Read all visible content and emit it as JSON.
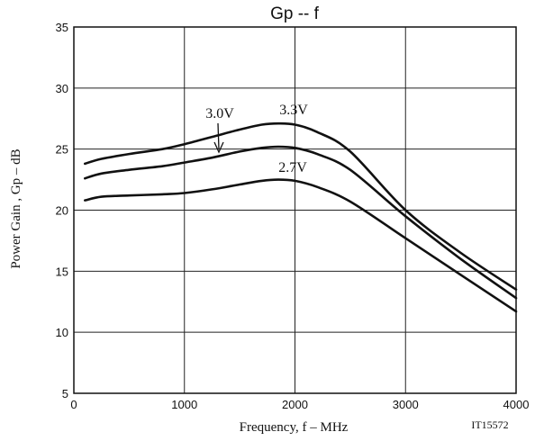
{
  "chart_data": {
    "type": "line",
    "title": "Gp  --  f",
    "xlabel": "Frequency, f  –  MHz",
    "ylabel": "Power Gain , Gp  –  dB",
    "figure_id": "IT15572",
    "xlim": [
      0,
      4000
    ],
    "ylim": [
      5,
      35
    ],
    "xticks": [
      0,
      1000,
      2000,
      3000,
      4000
    ],
    "yticks": [
      5,
      10,
      15,
      20,
      25,
      30,
      35
    ],
    "grid": true,
    "series": [
      {
        "name": "3.3V",
        "x": [
          100,
          250,
          500,
          800,
          1000,
          1250,
          1500,
          1700,
          1850,
          2000,
          2200,
          2500,
          3000,
          3500,
          4000
        ],
        "y": [
          23.8,
          24.2,
          24.6,
          25.0,
          25.4,
          26.0,
          26.6,
          27.0,
          27.1,
          27.0,
          26.4,
          24.8,
          20.0,
          16.5,
          13.5
        ]
      },
      {
        "name": "3.0V",
        "x": [
          100,
          250,
          500,
          800,
          1000,
          1250,
          1500,
          1700,
          1850,
          2000,
          2200,
          2500,
          3000,
          3500,
          4000
        ],
        "y": [
          22.6,
          23.0,
          23.3,
          23.6,
          23.9,
          24.3,
          24.8,
          25.1,
          25.2,
          25.1,
          24.6,
          23.3,
          19.5,
          16.0,
          12.8
        ]
      },
      {
        "name": "2.7V",
        "x": [
          100,
          250,
          500,
          800,
          1000,
          1250,
          1500,
          1700,
          1850,
          2000,
          2200,
          2500,
          3000,
          3500,
          4000
        ],
        "y": [
          20.8,
          21.1,
          21.2,
          21.3,
          21.4,
          21.7,
          22.1,
          22.4,
          22.5,
          22.4,
          21.9,
          20.7,
          17.7,
          14.7,
          11.7
        ]
      }
    ]
  }
}
